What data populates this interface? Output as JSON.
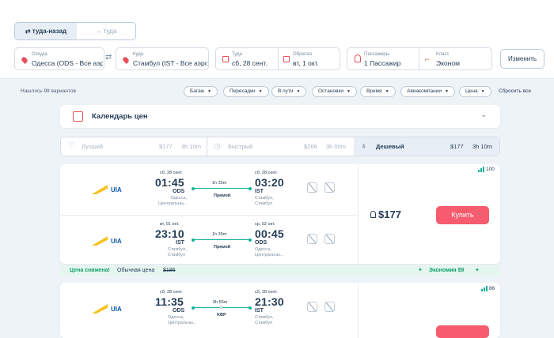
{
  "search": {
    "trip_tabs": {
      "round_trip": "⇄ туда-назад",
      "one_way": "→ туда"
    },
    "from": {
      "label": "Откуда",
      "value": "Одесса (ODS - Все аэро"
    },
    "to": {
      "label": "Куда",
      "value": "Стамбул (IST - Все аэро"
    },
    "depart": {
      "label": "Туда",
      "value": "сб, 28 сент."
    },
    "return": {
      "label": "Обратно",
      "value": "вт, 1 окт."
    },
    "passengers": {
      "label": "Пассажиры",
      "value": "1 Пассажир"
    },
    "class": {
      "label": "Класс",
      "value": "Эконом"
    },
    "change_label": "Изменить",
    "swap_icon": "⇄"
  },
  "filters": {
    "found": "Нашлось 99 вариантов",
    "chips": [
      "Багаж",
      "Пересадки",
      "В пути",
      "Остановки",
      "Время",
      "Авиакомпании",
      "Цена"
    ],
    "reset": "Сбросить все"
  },
  "calendar": {
    "title": "Календарь цен"
  },
  "sort": {
    "best": {
      "label": "Лучший",
      "price": "$177",
      "time": "3h 10m"
    },
    "fast": {
      "label": "Быстрый",
      "price": "$266",
      "time": "3h 00m"
    },
    "cheap": {
      "label": "Дешевый",
      "price": "$177",
      "time": "3h 10m"
    }
  },
  "results": [
    {
      "airline": "UIA",
      "rating": "100",
      "price": "$177",
      "buy_label": "Купить",
      "segments": [
        {
          "dep_date": "сб, 28 сент.",
          "dep_time": "01:45",
          "dep_code": "ODS",
          "dep_city": [
            "Одесса,",
            "Центральны..."
          ],
          "duration": "1h 35m",
          "stops": "Прямой",
          "arr_date": "сб, 28 сент.",
          "arr_time": "03:20",
          "arr_code": "IST",
          "arr_city": [
            "Стамбул,",
            "Стамбул"
          ]
        },
        {
          "dep_date": "вт, 01 окт.",
          "dep_time": "23:10",
          "dep_code": "IST",
          "dep_city": [
            "Стамбул,",
            "Стамбул"
          ],
          "duration": "1h 35m",
          "stops": "Прямой",
          "arr_date": "ср, 02 окт.",
          "arr_time": "00:45",
          "arr_code": "ODS",
          "arr_city": [
            "Одесса,",
            "Центральны..."
          ]
        }
      ],
      "promo": {
        "highlight": "Цена снижена!",
        "normal": "Обычная цена",
        "old_price": "$186",
        "saving": "Экономия $9"
      }
    },
    {
      "airline": "UIA",
      "rating": "86",
      "segments": [
        {
          "dep_date": "сб, 28 сент.",
          "dep_time": "11:35",
          "dep_code": "ODS",
          "dep_city": [
            "Одесса,",
            "Центральны..."
          ],
          "duration": "9h 55m",
          "stops": "KBP",
          "arr_date": "сб, 28 сент.",
          "arr_time": "21:30",
          "arr_code": "IST",
          "arr_city": [
            "Стамбул,",
            "Стамбул"
          ]
        }
      ]
    }
  ],
  "colors": {
    "accent": "#f65b6e",
    "green": "#15b39a",
    "text": "#253d56"
  }
}
